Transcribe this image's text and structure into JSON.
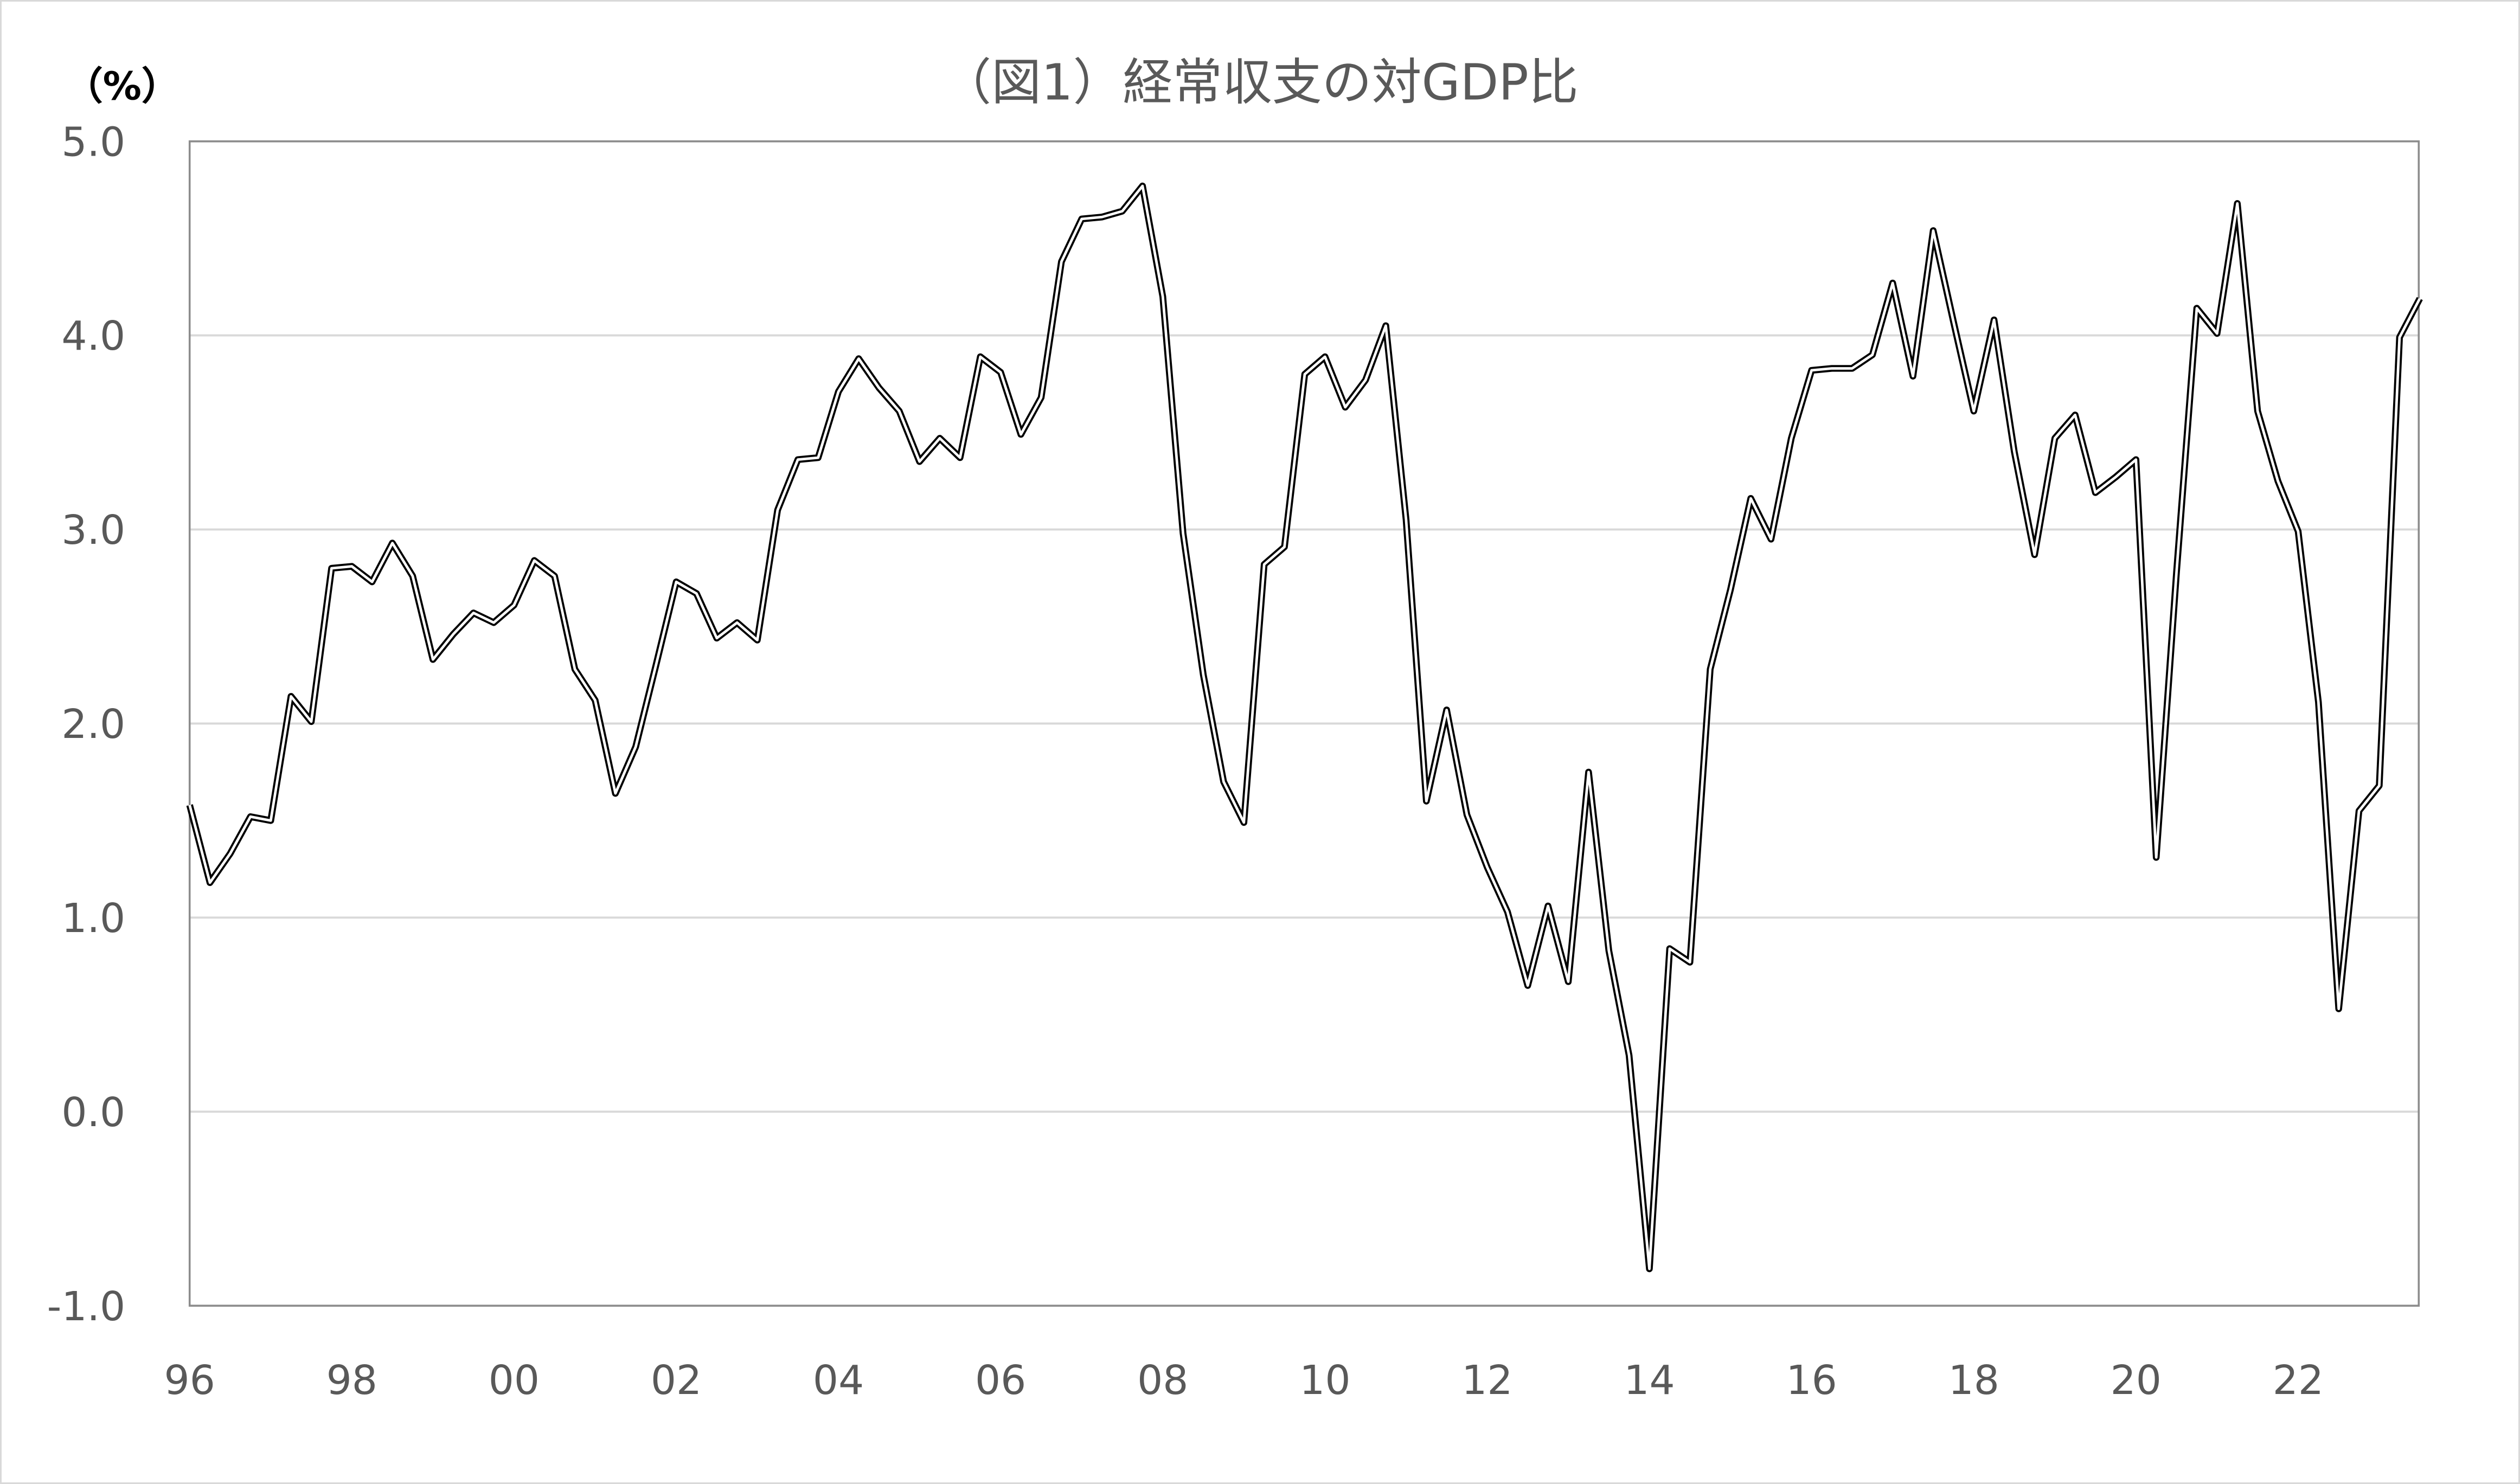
{
  "chart_data": {
    "type": "line",
    "title": "（図1）経常収支の対GDP比",
    "ylabel": "（%）",
    "xlabel": "",
    "ylim": [
      -1.0,
      5.0
    ],
    "yticks": [
      "5.0",
      "4.0",
      "3.0",
      "2.0",
      "1.0",
      "0.0",
      "-1.0"
    ],
    "xticks": [
      "96",
      "98",
      "00",
      "02",
      "04",
      "06",
      "08",
      "10",
      "12",
      "14",
      "16",
      "18",
      "20",
      "22"
    ],
    "x_start": "1996Q1",
    "x_frequency": "quarterly",
    "grid": true,
    "line_color": "#000000",
    "grid_color": "#d9d9d9",
    "series": [
      {
        "values": [
          1.58,
          1.18,
          1.33,
          1.52,
          1.5,
          2.14,
          2.01,
          2.8,
          2.81,
          2.73,
          2.93,
          2.76,
          2.33,
          2.46,
          2.57,
          2.52,
          2.61,
          2.84,
          2.76,
          2.28,
          2.12,
          1.64,
          1.88,
          2.3,
          2.73,
          2.67,
          2.44,
          2.52,
          2.43,
          3.1,
          3.36,
          3.37,
          3.71,
          3.88,
          3.73,
          3.61,
          3.35,
          3.47,
          3.37,
          3.89,
          3.81,
          3.49,
          3.68,
          4.38,
          4.6,
          4.61,
          4.64,
          4.77,
          4.2,
          2.98,
          2.25,
          1.7,
          1.49,
          2.82,
          2.91,
          3.8,
          3.89,
          3.63,
          3.77,
          4.05,
          3.05,
          1.6,
          2.07,
          1.53,
          1.26,
          1.03,
          0.65,
          1.06,
          0.67,
          1.75,
          0.83,
          0.29,
          -0.81,
          0.84,
          0.77,
          2.28,
          2.69,
          3.16,
          2.95,
          3.47,
          3.82,
          3.83,
          3.83,
          3.9,
          4.27,
          3.79,
          4.54,
          4.07,
          3.61,
          4.08,
          3.4,
          2.87,
          3.47,
          3.59,
          3.19,
          3.27,
          3.36,
          1.31,
          2.78,
          4.14,
          4.01,
          4.68,
          3.61,
          3.25,
          2.99,
          2.11,
          0.53,
          1.55,
          1.68,
          3.99,
          4.19
        ]
      }
    ]
  }
}
